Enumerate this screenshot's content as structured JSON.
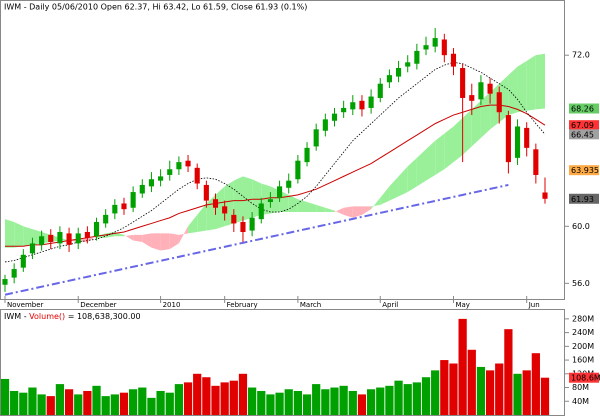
{
  "chart_data": {
    "type": "candlestick",
    "title": "IWM - Daily 05/06/2010 Open 62.37, Hi 63.42, Lo 61.59, Close 61.93 (0.1%)",
    "categories": [
      "November",
      null,
      null,
      null,
      null,
      null,
      null,
      null,
      "December",
      null,
      null,
      null,
      null,
      null,
      null,
      null,
      null,
      "2010",
      null,
      null,
      null,
      null,
      null,
      null,
      "February",
      null,
      null,
      null,
      null,
      null,
      null,
      null,
      "March",
      null,
      null,
      null,
      null,
      null,
      null,
      null,
      null,
      "April",
      null,
      null,
      null,
      null,
      null,
      null,
      null,
      "May",
      null,
      null,
      null,
      null,
      null,
      null,
      null,
      "Jun",
      null,
      null
    ],
    "open": [
      55.9,
      56.4,
      57.1,
      58.1,
      58.7,
      59.4,
      58.8,
      59.5,
      58.8,
      59.6,
      59.3,
      60.2,
      60.9,
      61.6,
      61.3,
      62.3,
      62.8,
      63.2,
      63.6,
      64.0,
      64.6,
      64.1,
      62.9,
      61.9,
      61.4,
      60.8,
      60.3,
      59.7,
      60.5,
      61.7,
      62.0,
      62.7,
      63.3,
      64.5,
      65.6,
      66.7,
      67.4,
      68.0,
      68.2,
      68.8,
      68.3,
      69.0,
      70.1,
      70.5,
      71.2,
      71.4,
      72.4,
      72.6,
      73.1,
      72.1,
      71.1,
      69.2,
      68.9,
      70.0,
      69.4,
      67.8,
      64.8,
      66.9,
      65.4,
      62.37
    ],
    "high": [
      56.6,
      57.4,
      58.4,
      59.2,
      59.7,
      59.8,
      60.0,
      59.9,
      59.9,
      60.0,
      60.6,
      61.2,
      61.9,
      62.0,
      62.8,
      63.3,
      63.8,
      64.0,
      64.6,
      64.9,
      65.0,
      64.4,
      63.2,
      62.3,
      61.8,
      61.2,
      60.7,
      61.0,
      62.0,
      62.4,
      63.2,
      63.7,
      65.0,
      65.9,
      67.2,
      67.9,
      68.3,
      68.8,
      69.2,
      69.2,
      69.6,
      70.4,
      71.0,
      71.6,
      72.0,
      72.8,
      73.3,
      73.9,
      73.5,
      72.5,
      71.4,
      70.0,
      70.6,
      70.4,
      69.8,
      68.1,
      67.5,
      67.3,
      65.8,
      63.42
    ],
    "low": [
      55.4,
      56.0,
      56.8,
      57.7,
      58.3,
      58.4,
      58.4,
      58.2,
      58.4,
      58.8,
      59.0,
      59.9,
      60.5,
      60.8,
      61.0,
      62.0,
      62.4,
      62.8,
      63.2,
      63.6,
      63.8,
      62.6,
      61.3,
      60.8,
      60.4,
      59.6,
      58.9,
      59.3,
      60.2,
      61.3,
      61.7,
      62.3,
      63.0,
      64.2,
      65.3,
      66.3,
      67.0,
      67.6,
      67.8,
      67.7,
      67.9,
      68.7,
      69.7,
      70.1,
      70.8,
      71.0,
      72.0,
      72.2,
      71.5,
      70.6,
      64.5,
      67.8,
      68.5,
      68.6,
      67.2,
      63.7,
      64.3,
      64.9,
      63.0,
      61.59
    ],
    "close": [
      56.3,
      57.0,
      58.0,
      58.8,
      59.3,
      58.9,
      59.6,
      58.7,
      59.5,
      59.2,
      60.3,
      60.8,
      61.5,
      61.2,
      62.4,
      62.9,
      63.3,
      63.5,
      64.0,
      64.5,
      64.2,
      63.0,
      61.8,
      61.3,
      60.9,
      60.2,
      59.6,
      60.6,
      61.6,
      61.9,
      62.8,
      63.2,
      64.6,
      65.5,
      66.8,
      67.5,
      67.9,
      68.3,
      68.7,
      68.2,
      69.1,
      70.0,
      70.6,
      71.1,
      71.5,
      72.3,
      72.7,
      73.2,
      72.0,
      71.2,
      69.0,
      68.8,
      70.1,
      69.3,
      68.0,
      64.5,
      67.0,
      65.5,
      63.6,
      61.93
    ],
    "up_color": "#00a000",
    "down_color": "#e00000",
    "ylim": [
      54.9,
      75.8
    ],
    "yticks": [
      {
        "value": 56,
        "label": "56.0"
      },
      {
        "value": 60,
        "label": "60.0"
      },
      {
        "value": 72,
        "label": "72.0"
      }
    ],
    "moving_averages": [
      {
        "color": "#cc0000",
        "style": "solid",
        "values": [
          58.6,
          58.6,
          58.6,
          58.7,
          58.7,
          58.8,
          58.9,
          59.0,
          59.1,
          59.2,
          59.3,
          59.4,
          59.5,
          59.6,
          59.8,
          60.0,
          60.2,
          60.4,
          60.6,
          60.9,
          61.1,
          61.3,
          61.5,
          61.6,
          61.7,
          61.8,
          61.8,
          61.9,
          61.9,
          62.0,
          62.0,
          62.1,
          62.2,
          62.4,
          62.6,
          62.9,
          63.2,
          63.5,
          63.8,
          64.1,
          64.4,
          64.8,
          65.2,
          65.6,
          66.0,
          66.4,
          66.8,
          67.2,
          67.5,
          67.8,
          68.0,
          68.2,
          68.4,
          68.5,
          68.5,
          68.4,
          68.2,
          67.9,
          67.5,
          67.09
        ]
      },
      {
        "color": "#000000",
        "style": "dotted",
        "values": [
          57.5,
          57.6,
          57.8,
          58.0,
          58.2,
          58.4,
          58.6,
          58.7,
          58.9,
          59.0,
          59.1,
          59.3,
          59.6,
          59.9,
          60.3,
          60.7,
          61.1,
          61.6,
          62.1,
          62.6,
          63.0,
          63.3,
          63.4,
          63.3,
          63.0,
          62.6,
          62.1,
          61.6,
          61.2,
          61.0,
          61.0,
          61.2,
          61.6,
          62.1,
          62.8,
          63.6,
          64.4,
          65.2,
          66.0,
          66.6,
          67.2,
          67.8,
          68.4,
          69.0,
          69.5,
          70.0,
          70.5,
          71.0,
          71.3,
          71.5,
          71.4,
          71.1,
          70.8,
          70.4,
          70.0,
          69.6,
          68.9,
          68.0,
          67.2,
          66.45
        ]
      }
    ],
    "cloud": {
      "up_color": "#99f099",
      "down_color": "#ffb0b8",
      "span_a": [
        60.5,
        60.3,
        60.0,
        59.8,
        59.6,
        59.4,
        59.2,
        59.0,
        58.9,
        58.9,
        59.3,
        59.5,
        59.6,
        59.4,
        59.0,
        58.9,
        58.5,
        58.3,
        58.4,
        58.8,
        60.0,
        60.8,
        61.6,
        62.2,
        62.8,
        63.2,
        63.5,
        63.3,
        63.0,
        62.8,
        62.5,
        62.2,
        61.9,
        61.7,
        61.5,
        61.3,
        61.1,
        60.8,
        60.6,
        60.8,
        61.2,
        62.0,
        62.8,
        63.5,
        64.2,
        64.8,
        65.4,
        66.0,
        66.5,
        67.0,
        67.6,
        68.2,
        68.8,
        69.4,
        70.0,
        70.6,
        71.2,
        71.6,
        72.0,
        72.1
      ],
      "span_b": [
        58.5,
        58.5,
        58.6,
        58.7,
        58.8,
        58.9,
        59.0,
        59.0,
        59.1,
        59.2,
        59.2,
        59.2,
        59.3,
        59.3,
        59.4,
        59.4,
        59.5,
        59.5,
        59.5,
        59.4,
        59.5,
        59.6,
        59.7,
        59.8,
        60.0,
        60.2,
        60.4,
        60.6,
        60.8,
        60.9,
        61.0,
        61.0,
        61.0,
        61.0,
        61.0,
        61.0,
        61.0,
        61.3,
        61.4,
        61.4,
        61.4,
        61.5,
        61.8,
        62.1,
        62.4,
        62.8,
        63.2,
        63.6,
        64.0,
        64.5,
        65.0,
        65.6,
        66.2,
        66.8,
        67.3,
        67.8,
        68.0,
        68.1,
        68.2,
        68.26
      ]
    },
    "trendline": {
      "from": [
        0,
        55.2
      ],
      "to": [
        55,
        62.9
      ],
      "color": "#6666e6"
    },
    "price_markers": [
      {
        "value": 68.26,
        "color": "#66cc66"
      },
      {
        "value": 67.09,
        "color": "#ff3333"
      },
      {
        "value": 66.45,
        "color": "#a0a0a0"
      },
      {
        "value": 63.935,
        "color": "#ffaa44"
      },
      {
        "value": 61.93,
        "color": "#666666"
      }
    ],
    "volume": {
      "symbol": "IWM -",
      "label": "Volume()",
      "label_color": "#e00000",
      "readout": "= 108,638,300.00",
      "values": [
        105000000,
        70000000,
        65000000,
        80000000,
        60000000,
        55000000,
        90000000,
        75000000,
        60000000,
        70000000,
        85000000,
        55000000,
        60000000,
        65000000,
        75000000,
        80000000,
        50000000,
        70000000,
        65000000,
        90000000,
        95000000,
        120000000,
        110000000,
        85000000,
        95000000,
        100000000,
        120000000,
        80000000,
        70000000,
        60000000,
        65000000,
        75000000,
        70000000,
        60000000,
        90000000,
        75000000,
        80000000,
        85000000,
        70000000,
        60000000,
        75000000,
        80000000,
        85000000,
        100000000,
        90000000,
        95000000,
        110000000,
        130000000,
        160000000,
        150000000,
        280000000,
        190000000,
        140000000,
        130000000,
        150000000,
        250000000,
        120000000,
        130000000,
        180000000,
        108638300
      ],
      "ylim": [
        0,
        300000000
      ],
      "yticks": [
        {
          "value": 40000000,
          "label": "40M"
        },
        {
          "value": 80000000,
          "label": "80M"
        },
        {
          "value": 120000000,
          "label": "120M"
        },
        {
          "value": 160000000,
          "label": "160M"
        },
        {
          "value": 200000000,
          "label": "200M"
        },
        {
          "value": 240000000,
          "label": "240M"
        },
        {
          "value": 280000000,
          "label": "280M"
        }
      ],
      "marker": {
        "value": 108638300,
        "label": "108.6M",
        "color": "#ff3333"
      }
    }
  }
}
